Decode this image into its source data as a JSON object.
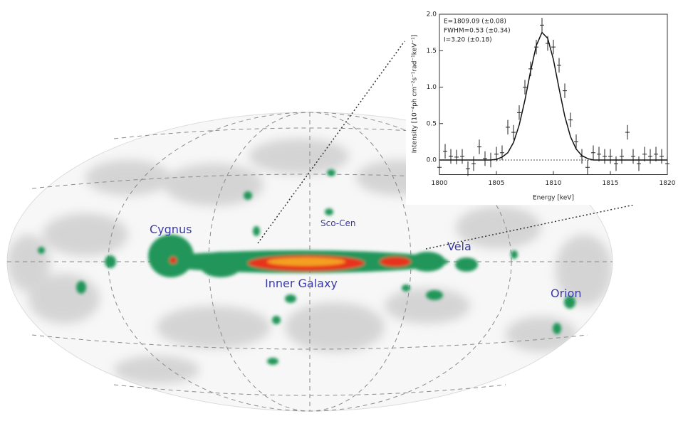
{
  "map": {
    "labels": [
      "Cygnus",
      "Sco-Cen",
      "Vela",
      "Inner Galaxy",
      "Orion"
    ]
  },
  "chart_data": {
    "type": "errorbar",
    "annotations": [
      "E=1809.09 (±0.08)",
      "FWHM=0.53 (±0.34)",
      "I=3.20 (±0.18)"
    ],
    "x_label": "Energy [keV]",
    "y_label": "Intensity [10⁻⁴ph cm⁻²s⁻¹rad⁻¹keV⁻¹]",
    "x": [
      1800,
      1800.5,
      1801,
      1801.5,
      1802,
      1802.5,
      1803,
      1803.5,
      1804,
      1804.5,
      1805,
      1805.5,
      1806,
      1806.5,
      1807,
      1807.5,
      1808,
      1808.5,
      1809,
      1809.5,
      1810,
      1810.5,
      1811,
      1811.5,
      1812,
      1812.5,
      1813,
      1813.5,
      1814,
      1814.5,
      1815,
      1815.5,
      1816,
      1816.5,
      1817,
      1817.5,
      1818,
      1818.5,
      1819,
      1819.5,
      1820
    ],
    "series": [
      {
        "color": "#222222",
        "values": [
          -0.1,
          0.12,
          0.05,
          0.04,
          0.05,
          -0.12,
          -0.05,
          0.18,
          0.02,
          0.0,
          0.08,
          0.1,
          0.45,
          0.38,
          0.65,
          1.0,
          1.25,
          1.55,
          1.85,
          1.6,
          1.55,
          1.3,
          0.95,
          0.55,
          0.25,
          0.05,
          -0.1,
          0.1,
          0.08,
          0.05,
          0.05,
          -0.05,
          0.05,
          0.38,
          0.05,
          -0.05,
          0.08,
          0.05,
          0.08,
          0.05,
          -0.05
        ],
        "errors": [
          0.1,
          0.1,
          0.1,
          0.1,
          0.1,
          0.1,
          0.1,
          0.1,
          0.1,
          0.1,
          0.1,
          0.1,
          0.1,
          0.1,
          0.1,
          0.1,
          0.1,
          0.1,
          0.1,
          0.1,
          0.1,
          0.1,
          0.1,
          0.1,
          0.1,
          0.1,
          0.1,
          0.1,
          0.1,
          0.1,
          0.1,
          0.1,
          0.1,
          0.1,
          0.1,
          0.1,
          0.1,
          0.1,
          0.1,
          0.1,
          0.1
        ]
      },
      {
        "color": "#111111",
        "style": "line",
        "values": [
          0,
          0,
          0,
          0,
          0,
          0,
          0,
          0,
          0,
          0,
          0.01,
          0.04,
          0.1,
          0.24,
          0.48,
          0.82,
          1.22,
          1.57,
          1.75,
          1.67,
          1.38,
          0.98,
          0.6,
          0.32,
          0.15,
          0.06,
          0.02,
          0,
          0,
          0,
          0,
          0,
          0,
          0,
          0,
          0,
          0,
          0,
          0,
          0,
          0
        ]
      }
    ],
    "xlim": [
      1800,
      1820
    ],
    "xticks": [
      1800,
      1805,
      1810,
      1815,
      1820
    ],
    "ylim": [
      -0.2,
      2.0
    ],
    "yticks": [
      {
        "value": 0,
        "label": "0.0"
      },
      0.5,
      {
        "value": 1,
        "label": "1.0"
      },
      1.5,
      {
        "value": 2,
        "label": "2.0"
      }
    ]
  }
}
